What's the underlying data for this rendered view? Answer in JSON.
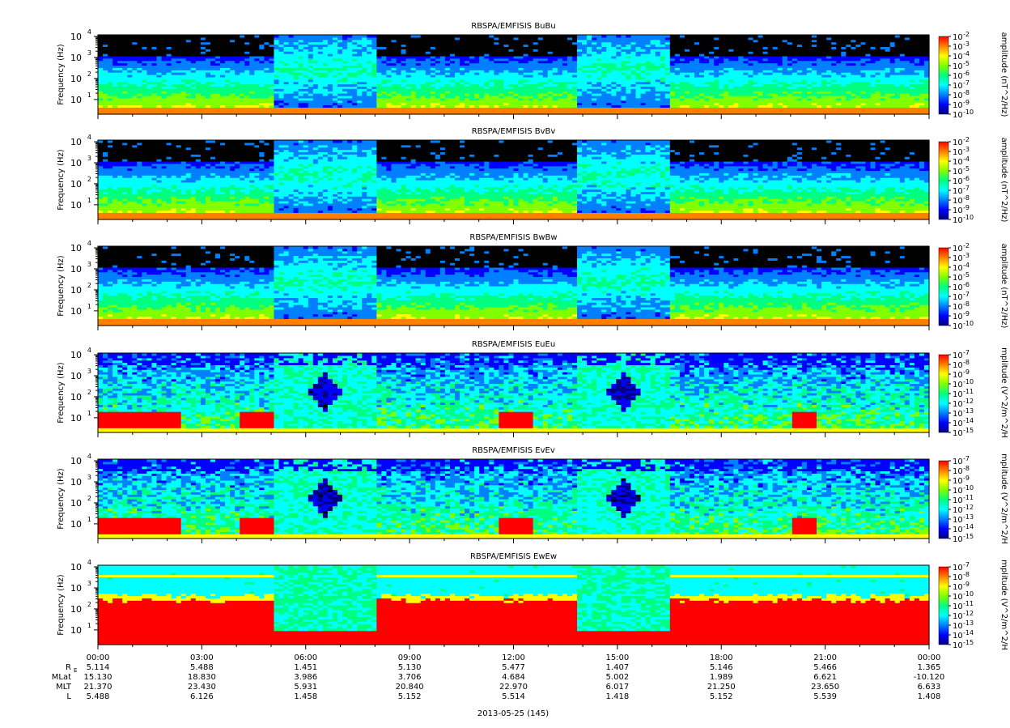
{
  "chart_data": {
    "type": "heatmap",
    "panels": [
      {
        "title": "RBSPA/EMFISIS  BuBu",
        "ylabel": "Frequency (Hz)",
        "cbar_label": "amplitude (nT^2/Hz)",
        "cbar_range_exp": [
          -10,
          -2
        ],
        "kind": "B"
      },
      {
        "title": "RBSPA/EMFISIS  BvBv",
        "ylabel": "Frequency (Hz)",
        "cbar_label": "amplitude (nT^2/Hz)",
        "cbar_range_exp": [
          -10,
          -2
        ],
        "kind": "B"
      },
      {
        "title": "RBSPA/EMFISIS  BwBw",
        "ylabel": "Frequency (Hz)",
        "cbar_label": "amplitude (nT^2/Hz)",
        "cbar_range_exp": [
          -10,
          -2
        ],
        "kind": "B"
      },
      {
        "title": "RBSPA/EMFISIS  EuEu",
        "ylabel": "Frequency (Hz)",
        "cbar_label": "mplitude (V^2/m^2/H",
        "cbar_range_exp": [
          -15,
          -7
        ],
        "kind": "E"
      },
      {
        "title": "RBSPA/EMFISIS  EvEv",
        "ylabel": "Frequency (Hz)",
        "cbar_label": "mplitude (V^2/m^2/H",
        "cbar_range_exp": [
          -15,
          -7
        ],
        "kind": "E"
      },
      {
        "title": "RBSPA/EMFISIS  EwEw",
        "ylabel": "Frequency (Hz)",
        "cbar_label": "mplitude (V^2/m^2/H",
        "cbar_range_exp": [
          -15,
          -7
        ],
        "kind": "Ew"
      }
    ],
    "y_ticks": [
      "10",
      "10",
      "10",
      "10"
    ],
    "y_tick_exps": [
      "1",
      "2",
      "3",
      "4"
    ],
    "y_scale": "log",
    "x_ticks": [
      "00:00",
      "03:00",
      "06:00",
      "09:00",
      "12:00",
      "15:00",
      "18:00",
      "21:00",
      "00:00"
    ],
    "ephemeris": [
      {
        "label": "R",
        "sub": "E",
        "values": [
          "5.114",
          "5.488",
          "1.451",
          "5.130",
          "5.477",
          "1.407",
          "5.146",
          "5.466",
          "1.365"
        ]
      },
      {
        "label": "MLat",
        "sub": "",
        "values": [
          "15.130",
          "18.830",
          "3.986",
          "3.706",
          "4.684",
          "5.002",
          "1.989",
          "6.621",
          "-10.120"
        ]
      },
      {
        "label": "MLT",
        "sub": "",
        "values": [
          "21.370",
          "23.430",
          "5.931",
          "20.840",
          "22.970",
          "6.017",
          "21.250",
          "23.650",
          "6.633"
        ]
      },
      {
        "label": "L",
        "sub": "",
        "values": [
          "5.488",
          "6.126",
          "1.458",
          "5.152",
          "5.514",
          "1.418",
          "5.152",
          "5.539",
          "1.408"
        ]
      }
    ],
    "date_label": "2013-05-25 (145)",
    "colormap": [
      "#000080",
      "#0000ff",
      "#0080ff",
      "#00ffff",
      "#00ff80",
      "#80ff00",
      "#ffff00",
      "#ff8000",
      "#ff0000"
    ]
  }
}
